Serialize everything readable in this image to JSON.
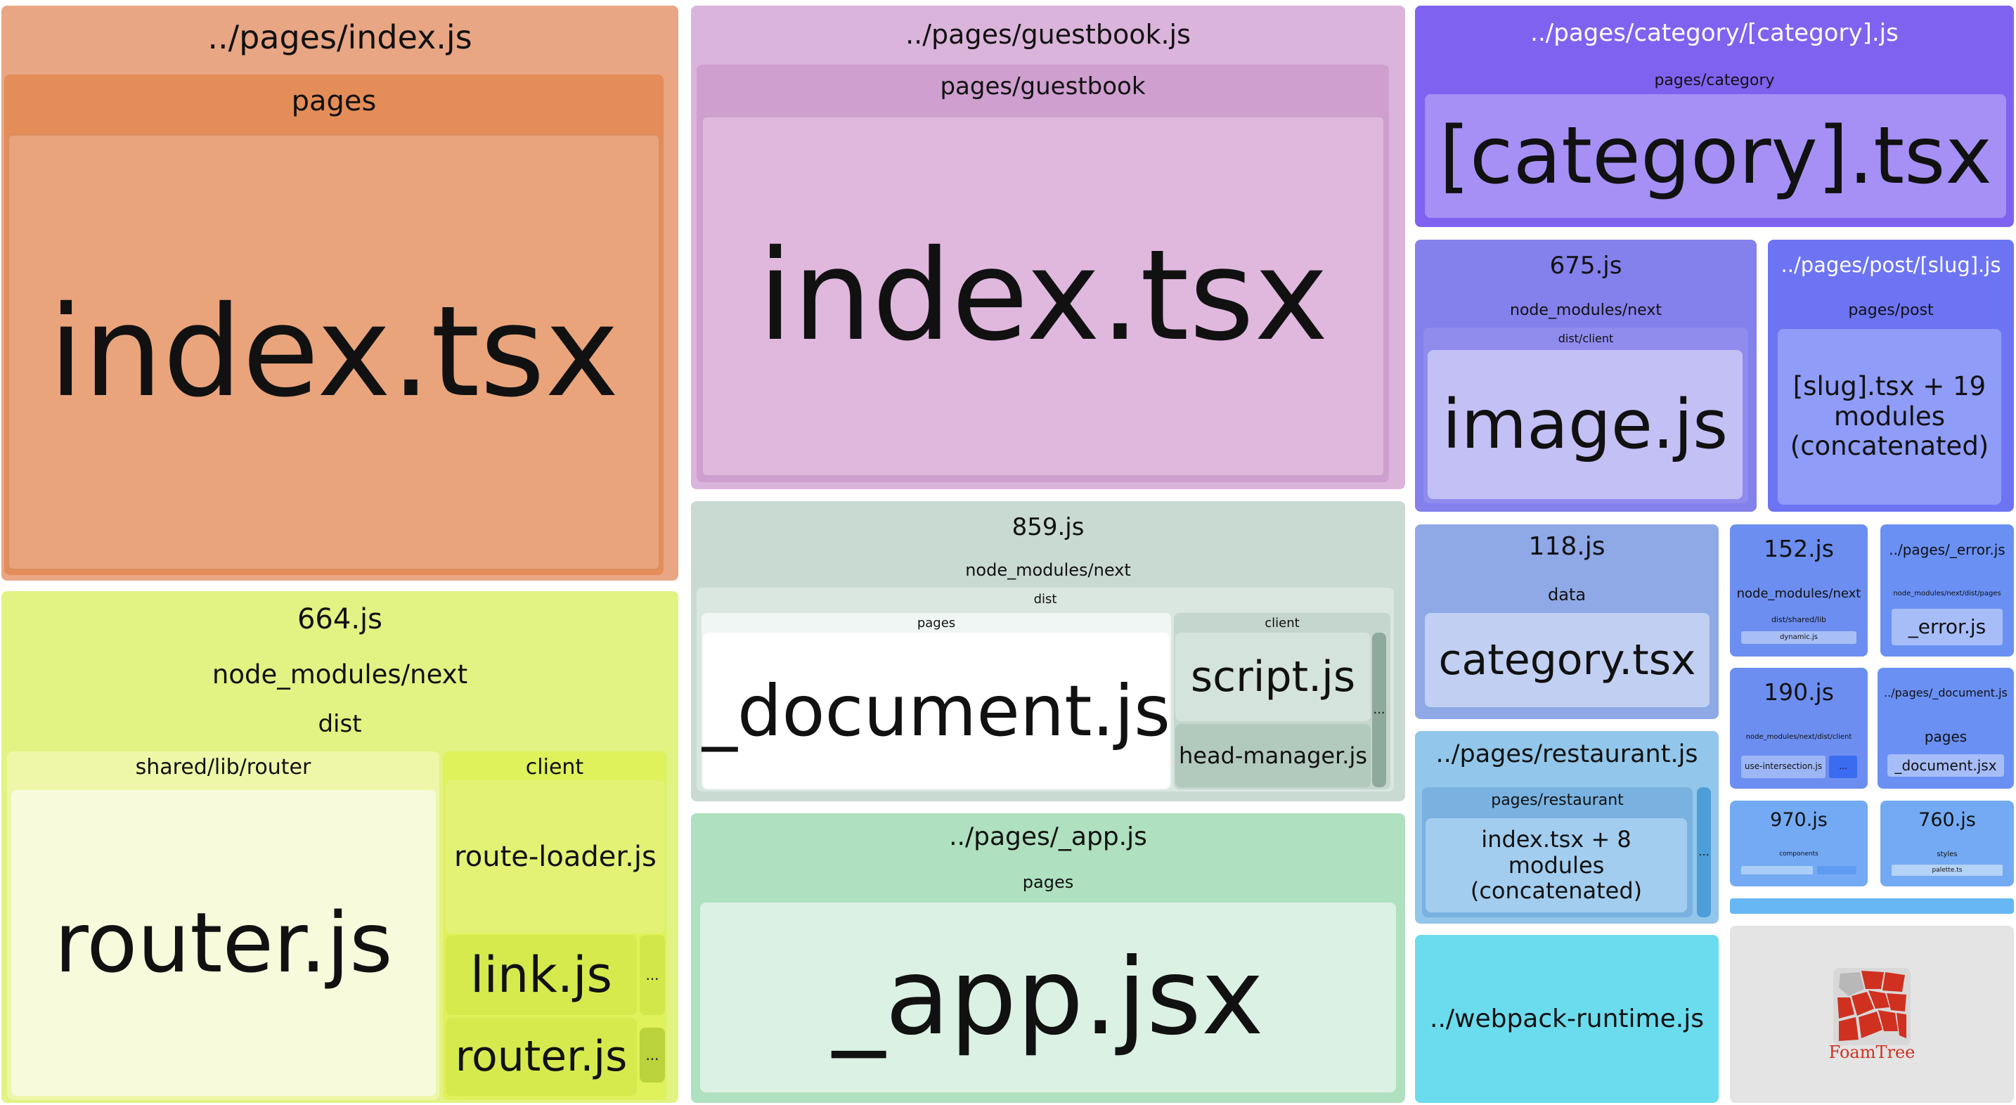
{
  "sidebar_toggle": {
    "icon": "chevron-right-icon"
  },
  "colors": {
    "index_orange": "#e7a482",
    "guestbook_purple": "#d6b1d8",
    "category_violet": "#8063f0",
    "chunk_664": "#e2f180",
    "chunk_859": "#c8dbd2",
    "app_green": "#afe0be",
    "chunk_675": "#8481ea",
    "runtime_cyan": "#6bdcee",
    "foamtree_red": "#d0301f"
  },
  "index": {
    "title": "../pages/index.js",
    "pages": "pages",
    "file": "index.tsx"
  },
  "guestbook": {
    "title": "../pages/guestbook.js",
    "folder": "pages/guestbook",
    "file": "index.tsx"
  },
  "category": {
    "title": "../pages/category/[category].js",
    "folder": "pages/category",
    "file": "[category].tsx"
  },
  "c675": {
    "title": "675.js",
    "folder": "node_modules/next",
    "sub": "dist/client",
    "file": "image.js"
  },
  "post": {
    "title": "../pages/post/[slug].js",
    "folder": "pages/post",
    "file": "[slug].tsx + 19 modules (concatenated)"
  },
  "c664": {
    "title": "664.js",
    "folder": "node_modules/next",
    "dist": "dist",
    "router_dir": "shared/lib/router",
    "router_file": "router.js",
    "client_dir": "client",
    "route_loader": "route-loader.js",
    "link": "link.js",
    "client_router": "router.js",
    "more": "..."
  },
  "c859": {
    "title": "859.js",
    "folder": "node_modules/next",
    "dist": "dist",
    "pages_dir": "pages",
    "document": "_document.js",
    "client_dir": "client",
    "script": "script.js",
    "head_manager": "head-manager.js",
    "more": "..."
  },
  "app": {
    "title": "../pages/_app.js",
    "folder": "pages",
    "file": "_app.jsx"
  },
  "c118": {
    "title": "118.js",
    "folder": "data",
    "file": "category.tsx"
  },
  "restaurant": {
    "title": "../pages/restaurant.js",
    "folder": "pages/restaurant",
    "file": "index.tsx + 8 modules (concatenated)",
    "more": "..."
  },
  "runtime": {
    "title": "../webpack-runtime.js"
  },
  "c152": {
    "title": "152.js",
    "folder": "node_modules/next",
    "sub": "dist/shared/lib",
    "file": "dynamic.js"
  },
  "error": {
    "title": "../pages/_error.js",
    "folder": "node_modules/next/dist/pages",
    "file": "_error.js"
  },
  "c190": {
    "title": "190.js",
    "folder": "node_modules/next/dist/client",
    "file": "use-intersection.js",
    "more": "..."
  },
  "document": {
    "title": "../pages/_document.js",
    "folder": "pages",
    "file": "_document.jsx"
  },
  "c970": {
    "title": "970.js",
    "folder": "components"
  },
  "c760": {
    "title": "760.js",
    "folder": "styles",
    "file": "palette.ts"
  },
  "foamtree": {
    "logo_text": "FoamTree",
    "icon": "foamtree-logo-icon"
  }
}
